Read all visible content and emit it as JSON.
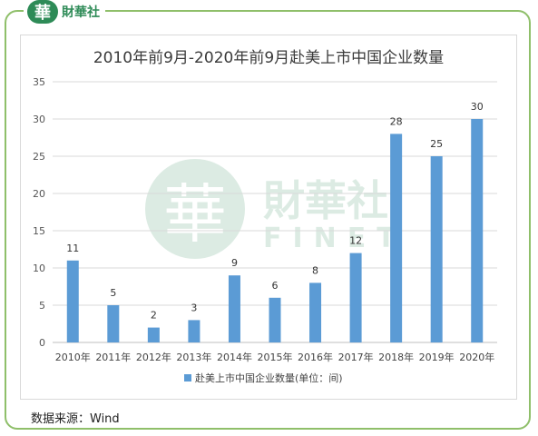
{
  "brand": {
    "mark": "華",
    "name": "財華社",
    "sub": "FINET"
  },
  "source": "数据来源：Wind",
  "colors": {
    "bar": "#5b9bd5",
    "frame": "#8fbf6a",
    "brand": "#2e8b57"
  },
  "chart_data": {
    "type": "bar",
    "title": "2010年前9月-2020年前9月赴美上市中国企业数量",
    "categories": [
      "2010年",
      "2011年",
      "2012年",
      "2013年",
      "2014年",
      "2015年",
      "2016年",
      "2017年",
      "2018年",
      "2019年",
      "2020年"
    ],
    "series": [
      {
        "name": "赴美上市中国企业数量(单位：间)",
        "values": [
          11,
          5,
          2,
          3,
          9,
          6,
          8,
          12,
          28,
          25,
          30
        ]
      }
    ],
    "ylim": [
      0,
      35
    ],
    "yticks": [
      0,
      5,
      10,
      15,
      20,
      25,
      30,
      35
    ],
    "grid": true,
    "legend": "bottom",
    "data_labels": true
  }
}
